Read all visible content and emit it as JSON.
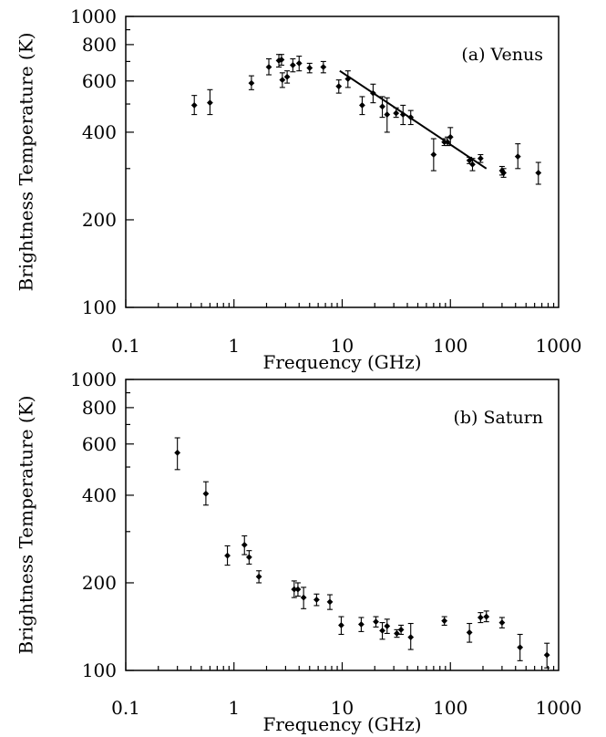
{
  "chart_data": [
    {
      "type": "scatter",
      "panel_label": "(a) Venus",
      "xlabel": "Frequency (GHz)",
      "ylabel": "Brightness Temperature (K)",
      "xscale": "log",
      "yscale": "log",
      "xlim": [
        0.1,
        1000
      ],
      "ylim": [
        100,
        1000
      ],
      "xticks": [
        {
          "value": 0.1,
          "label": "0.1"
        },
        {
          "value": 1,
          "label": "1"
        },
        {
          "value": 10,
          "label": "10"
        },
        {
          "value": 100,
          "label": "100"
        },
        {
          "value": 1000,
          "label": "1000"
        }
      ],
      "yticks": [
        {
          "value": 100,
          "label": "100"
        },
        {
          "value": 200,
          "label": "200"
        },
        {
          "value": 400,
          "label": "400"
        },
        {
          "value": 600,
          "label": "600"
        },
        {
          "value": 800,
          "label": "800"
        },
        {
          "value": 1000,
          "label": "1000"
        }
      ],
      "points": [
        {
          "x": 0.43,
          "y": 495,
          "lo": 460,
          "hi": 535
        },
        {
          "x": 0.6,
          "y": 505,
          "lo": 460,
          "hi": 560
        },
        {
          "x": 1.45,
          "y": 590,
          "lo": 560,
          "hi": 625
        },
        {
          "x": 2.1,
          "y": 670,
          "lo": 630,
          "hi": 715
        },
        {
          "x": 2.6,
          "y": 705,
          "lo": 670,
          "hi": 740
        },
        {
          "x": 2.75,
          "y": 710,
          "lo": 680,
          "hi": 740
        },
        {
          "x": 2.8,
          "y": 605,
          "lo": 570,
          "hi": 640
        },
        {
          "x": 3.1,
          "y": 620,
          "lo": 590,
          "hi": 650
        },
        {
          "x": 3.5,
          "y": 680,
          "lo": 645,
          "hi": 715
        },
        {
          "x": 4.0,
          "y": 690,
          "lo": 650,
          "hi": 730
        },
        {
          "x": 5.0,
          "y": 665,
          "lo": 640,
          "hi": 690
        },
        {
          "x": 6.7,
          "y": 670,
          "lo": 640,
          "hi": 700
        },
        {
          "x": 9.3,
          "y": 575,
          "lo": 545,
          "hi": 605
        },
        {
          "x": 11.3,
          "y": 610,
          "lo": 570,
          "hi": 650
        },
        {
          "x": 15.3,
          "y": 495,
          "lo": 460,
          "hi": 530
        },
        {
          "x": 19.3,
          "y": 545,
          "lo": 505,
          "hi": 585
        },
        {
          "x": 23.5,
          "y": 490,
          "lo": 450,
          "hi": 530
        },
        {
          "x": 26,
          "y": 460,
          "lo": 400,
          "hi": 525
        },
        {
          "x": 31.5,
          "y": 465,
          "lo": 450,
          "hi": 485
        },
        {
          "x": 36.5,
          "y": 460,
          "lo": 425,
          "hi": 495
        },
        {
          "x": 43,
          "y": 450,
          "lo": 425,
          "hi": 475
        },
        {
          "x": 70,
          "y": 335,
          "lo": 295,
          "hi": 380
        },
        {
          "x": 88,
          "y": 370,
          "lo": 360,
          "hi": 380
        },
        {
          "x": 94,
          "y": 370,
          "lo": 360,
          "hi": 385
        },
        {
          "x": 100,
          "y": 385,
          "lo": 360,
          "hi": 415
        },
        {
          "x": 150,
          "y": 320,
          "lo": 312,
          "hi": 328
        },
        {
          "x": 160,
          "y": 310,
          "lo": 295,
          "hi": 325
        },
        {
          "x": 190,
          "y": 325,
          "lo": 315,
          "hi": 335
        },
        {
          "x": 300,
          "y": 295,
          "lo": 285,
          "hi": 305
        },
        {
          "x": 310,
          "y": 290,
          "lo": 280,
          "hi": 300
        },
        {
          "x": 420,
          "y": 330,
          "lo": 300,
          "hi": 365
        },
        {
          "x": 650,
          "y": 290,
          "lo": 265,
          "hi": 315
        }
      ],
      "fit_line": {
        "x": [
          9.5,
          215
        ],
        "y": [
          650,
          300
        ]
      }
    },
    {
      "type": "scatter",
      "panel_label": "(b) Saturn",
      "xlabel": "Frequency (GHz)",
      "ylabel": "Brightness Temperature (K)",
      "xscale": "log",
      "yscale": "log",
      "xlim": [
        0.1,
        1000
      ],
      "ylim": [
        100,
        1000
      ],
      "xticks": [
        {
          "value": 0.1,
          "label": "0.1"
        },
        {
          "value": 1,
          "label": "1"
        },
        {
          "value": 10,
          "label": "10"
        },
        {
          "value": 100,
          "label": "100"
        },
        {
          "value": 1000,
          "label": "1000"
        }
      ],
      "yticks": [
        {
          "value": 100,
          "label": "100"
        },
        {
          "value": 200,
          "label": "200"
        },
        {
          "value": 400,
          "label": "400"
        },
        {
          "value": 600,
          "label": "600"
        },
        {
          "value": 800,
          "label": "800"
        },
        {
          "value": 1000,
          "label": "1000"
        }
      ],
      "points": [
        {
          "x": 0.3,
          "y": 560,
          "lo": 490,
          "hi": 630
        },
        {
          "x": 0.55,
          "y": 405,
          "lo": 370,
          "hi": 445
        },
        {
          "x": 0.87,
          "y": 248,
          "lo": 230,
          "hi": 268
        },
        {
          "x": 1.25,
          "y": 270,
          "lo": 250,
          "hi": 290
        },
        {
          "x": 1.38,
          "y": 245,
          "lo": 232,
          "hi": 258
        },
        {
          "x": 1.7,
          "y": 210,
          "lo": 200,
          "hi": 220
        },
        {
          "x": 3.6,
          "y": 190,
          "lo": 178,
          "hi": 203
        },
        {
          "x": 3.9,
          "y": 190,
          "lo": 180,
          "hi": 200
        },
        {
          "x": 4.4,
          "y": 178,
          "lo": 163,
          "hi": 193
        },
        {
          "x": 5.8,
          "y": 175,
          "lo": 167,
          "hi": 183
        },
        {
          "x": 7.7,
          "y": 172,
          "lo": 162,
          "hi": 182
        },
        {
          "x": 9.8,
          "y": 143,
          "lo": 133,
          "hi": 153
        },
        {
          "x": 15,
          "y": 144,
          "lo": 136,
          "hi": 152
        },
        {
          "x": 20.5,
          "y": 147,
          "lo": 141,
          "hi": 153
        },
        {
          "x": 23.5,
          "y": 137,
          "lo": 128,
          "hi": 146
        },
        {
          "x": 26,
          "y": 142,
          "lo": 134,
          "hi": 150
        },
        {
          "x": 32,
          "y": 134,
          "lo": 130,
          "hi": 138
        },
        {
          "x": 35,
          "y": 138,
          "lo": 133,
          "hi": 143
        },
        {
          "x": 43,
          "y": 130,
          "lo": 118,
          "hi": 145
        },
        {
          "x": 88,
          "y": 148,
          "lo": 143,
          "hi": 153
        },
        {
          "x": 150,
          "y": 135,
          "lo": 125,
          "hi": 145
        },
        {
          "x": 190,
          "y": 152,
          "lo": 146,
          "hi": 158
        },
        {
          "x": 215,
          "y": 153,
          "lo": 147,
          "hi": 160
        },
        {
          "x": 300,
          "y": 146,
          "lo": 140,
          "hi": 152
        },
        {
          "x": 440,
          "y": 120,
          "lo": 108,
          "hi": 133
        },
        {
          "x": 780,
          "y": 113,
          "lo": 102,
          "hi": 124
        }
      ]
    }
  ]
}
